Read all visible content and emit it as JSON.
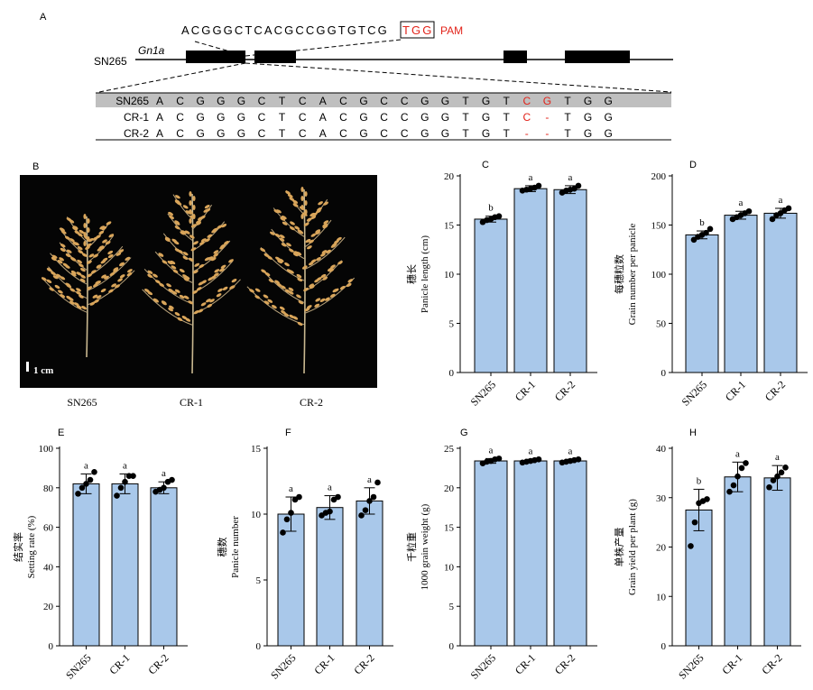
{
  "colors": {
    "bar_fill": "#a9c8ea",
    "bar_stroke": "#000000",
    "dot": "#000000",
    "mutation_red": "#e2231a",
    "alignment_header_bg": "#bfbfbf",
    "photo_bg": "#050505",
    "grain": "#d9a55a"
  },
  "panelA": {
    "label": "A",
    "guide_sequence": "ACGGGCTCACGCCGGTGTCG",
    "pam_sequence": "TGG",
    "pam_label": "PAM",
    "line_label": "SN265",
    "gene_label": "Gn1a",
    "rows": [
      {
        "name": "SN265",
        "bases": [
          "A",
          "C",
          "G",
          "G",
          "G",
          "C",
          "T",
          "C",
          "A",
          "C",
          "G",
          "C",
          "C",
          "G",
          "G",
          "T",
          "G",
          "T",
          "C",
          "G",
          "T",
          "G",
          "G"
        ],
        "red": [
          18,
          19
        ]
      },
      {
        "name": "CR-1",
        "bases": [
          "A",
          "C",
          "G",
          "G",
          "G",
          "C",
          "T",
          "C",
          "A",
          "C",
          "G",
          "C",
          "C",
          "G",
          "G",
          "T",
          "G",
          "T",
          "C",
          "-",
          "T",
          "G",
          "G"
        ],
        "red": [
          18,
          19
        ]
      },
      {
        "name": "CR-2",
        "bases": [
          "A",
          "C",
          "G",
          "G",
          "G",
          "C",
          "T",
          "C",
          "A",
          "C",
          "G",
          "C",
          "C",
          "G",
          "G",
          "T",
          "G",
          "T",
          "-",
          "-",
          "T",
          "G",
          "G"
        ],
        "red": [
          18,
          19
        ]
      }
    ]
  },
  "panelB": {
    "label": "B",
    "scale_label": "1 cm",
    "plants": [
      "SN265",
      "CR-1",
      "CR-2"
    ]
  },
  "chart_data": [
    {
      "panel": "C",
      "type": "bar",
      "categories": [
        "SN265",
        "CR-1",
        "CR-2"
      ],
      "values": [
        15.6,
        18.7,
        18.6
      ],
      "errors": [
        0.3,
        0.3,
        0.4
      ],
      "points": [
        [
          15.3,
          15.5,
          15.6,
          15.8,
          15.9
        ],
        [
          18.5,
          18.6,
          18.7,
          18.8,
          19.0
        ],
        [
          18.3,
          18.5,
          18.6,
          18.7,
          19.0
        ]
      ],
      "letters": [
        "b",
        "a",
        "a"
      ],
      "ylabel_cn": "穗长",
      "ylabel": "Panicle length (cm)",
      "ylim": [
        0,
        20
      ],
      "yticks": [
        0,
        5,
        10,
        15,
        20
      ]
    },
    {
      "panel": "D",
      "type": "bar",
      "categories": [
        "SN265",
        "CR-1",
        "CR-2"
      ],
      "values": [
        140,
        160,
        162
      ],
      "errors": [
        4,
        4,
        5
      ],
      "points": [
        [
          135,
          138,
          140,
          142,
          146
        ],
        [
          156,
          158,
          160,
          162,
          164
        ],
        [
          156,
          160,
          162,
          165,
          167
        ]
      ],
      "letters": [
        "b",
        "a",
        "a"
      ],
      "ylabel_cn": "每穗粒数",
      "ylabel": "Grain number per panicle",
      "ylim": [
        0,
        200
      ],
      "yticks": [
        0,
        50,
        100,
        150,
        200
      ]
    },
    {
      "panel": "E",
      "type": "bar",
      "categories": [
        "SN265",
        "CR-1",
        "CR-2"
      ],
      "values": [
        82,
        82,
        80
      ],
      "errors": [
        5,
        5,
        3
      ],
      "points": [
        [
          77,
          80,
          82,
          84,
          88
        ],
        [
          76,
          80,
          83,
          86,
          86
        ],
        [
          78,
          79,
          80,
          83,
          84
        ]
      ],
      "letters": [
        "a",
        "a",
        "a"
      ],
      "ylabel_cn": "结实率",
      "ylabel": "Setting rate (%)",
      "ylim": [
        0,
        100
      ],
      "yticks": [
        0,
        20,
        40,
        60,
        80,
        100
      ]
    },
    {
      "panel": "F",
      "type": "bar",
      "categories": [
        "SN265",
        "CR-1",
        "CR-2"
      ],
      "values": [
        10,
        10.5,
        11
      ],
      "errors": [
        1.3,
        0.9,
        1.0
      ],
      "points": [
        [
          8.6,
          9.6,
          10.1,
          11.1,
          11.3
        ],
        [
          9.9,
          10.1,
          10.2,
          11.1,
          11.3
        ],
        [
          9.9,
          10.3,
          11.0,
          11.3,
          12.4
        ]
      ],
      "letters": [
        "a",
        "a",
        "a"
      ],
      "ylabel_cn": "穗数",
      "ylabel": "Panicle number",
      "ylim": [
        0,
        15
      ],
      "yticks": [
        0,
        5,
        10,
        15
      ]
    },
    {
      "panel": "G",
      "type": "bar",
      "categories": [
        "SN265",
        "CR-1",
        "CR-2"
      ],
      "values": [
        23.4,
        23.4,
        23.4
      ],
      "errors": [
        0.3,
        0.2,
        0.2
      ],
      "points": [
        [
          23.1,
          23.3,
          23.4,
          23.6,
          23.7
        ],
        [
          23.2,
          23.3,
          23.4,
          23.5,
          23.6
        ],
        [
          23.2,
          23.3,
          23.4,
          23.5,
          23.6
        ]
      ],
      "letters": [
        "a",
        "a",
        "a"
      ],
      "ylabel_cn": "千粒重",
      "ylabel": "1000 grain weight (g)",
      "ylim": [
        0,
        25
      ],
      "yticks": [
        0,
        5,
        10,
        15,
        20,
        25
      ]
    },
    {
      "panel": "H",
      "type": "bar",
      "categories": [
        "SN265",
        "CR-1",
        "CR-2"
      ],
      "values": [
        27.5,
        34.2,
        34.0
      ],
      "errors": [
        4.2,
        3.0,
        2.5
      ],
      "points": [
        [
          20.2,
          25.0,
          28.9,
          29.3,
          29.7
        ],
        [
          31.2,
          32.5,
          34.3,
          36.0,
          37.0
        ],
        [
          32.1,
          33.5,
          34.3,
          35.1,
          36.1
        ]
      ],
      "letters": [
        "b",
        "a",
        "a"
      ],
      "ylabel_cn": "单株产量",
      "ylabel": "Grain yield per plant (g)",
      "ylim": [
        0,
        40
      ],
      "yticks": [
        0,
        10,
        20,
        30,
        40
      ]
    }
  ]
}
